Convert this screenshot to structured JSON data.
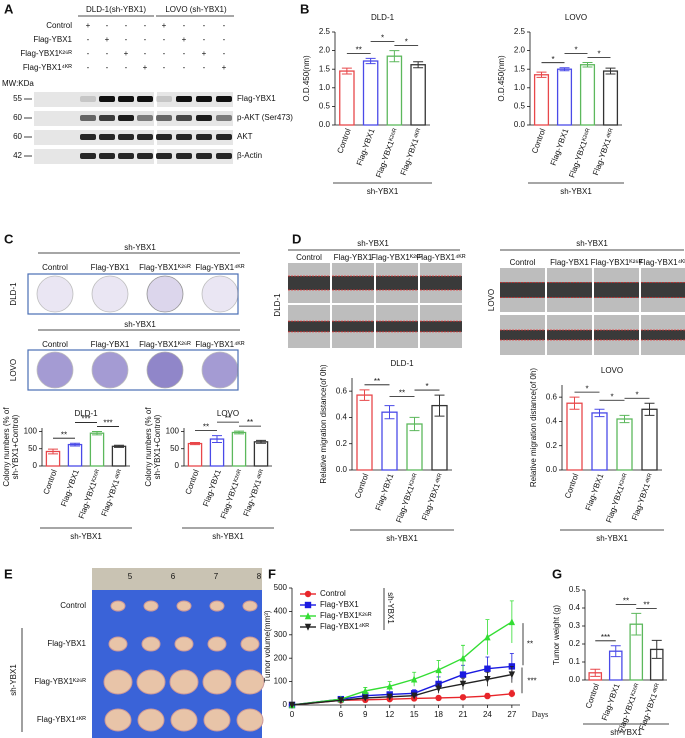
{
  "panels": {
    "labels": [
      "A",
      "B",
      "C",
      "D",
      "E",
      "F",
      "G"
    ],
    "A": {
      "headers": [
        "DLD-1(sh-YBX1)",
        "LOVO (sh-YBX1)"
      ],
      "rows": [
        "Control",
        "Flag-YBX1",
        "Flag-YBX1ᴷ²⁶ᴿ",
        "Flag-YBX1⁴ᴷᴿ"
      ],
      "matrix": [
        [
          "+",
          "-",
          "-",
          "-",
          "+",
          "-",
          "-",
          "-"
        ],
        [
          "-",
          "+",
          "-",
          "-",
          "-",
          "+",
          "-",
          "-"
        ],
        [
          "-",
          "-",
          "+",
          "-",
          "-",
          "-",
          "+",
          "-"
        ],
        [
          "-",
          "-",
          "-",
          "+",
          "-",
          "-",
          "-",
          "+"
        ]
      ],
      "mw_label": "MW:KDa",
      "markers": [
        "55",
        "60",
        "60",
        "42"
      ],
      "blots": [
        "Flag-YBX1",
        "p-AKT (Ser473)",
        "AKT",
        "β-Actin"
      ]
    },
    "C": {
      "group": [
        "sh-YBX1",
        "sh-YBX1"
      ],
      "columns": [
        "Control",
        "Flag-YBX1",
        "Flag-YBX1ᴷ²⁶ᴿ",
        "Flag-YBX1⁴ᴷᴿ"
      ],
      "rows": [
        "DLD-1",
        "LOVO"
      ]
    },
    "D": {
      "group": [
        "sh-YBX1",
        "sh-YBX1"
      ],
      "columns": [
        "Control",
        "Flag-YBX1",
        "Flag-YBX1ᴷ²⁶ᴿ",
        "Flag-YBX1⁴ᴷᴿ"
      ],
      "rows": [
        "DLD-1",
        "LOVO"
      ]
    },
    "E": {
      "ruler": [
        "5",
        "6",
        "7",
        "8"
      ],
      "rows": [
        "Control",
        "Flag-YBX1",
        "Flag-YBX1ᴷ²⁶ᴿ",
        "Flag-YBX1⁴ᴷᴿ"
      ],
      "group": "sh-YBX1"
    }
  },
  "chart_data": [
    {
      "type": "bar",
      "title": "DLD-1",
      "ylabel": [
        "O.D.450(nm)"
      ],
      "categories": [
        "Control",
        "Flag-YBX1",
        "Flag-YBX1ᴷ²⁶ᴿ",
        "Flag-YBX1⁴ᴷᴿ"
      ],
      "values": [
        1.45,
        1.72,
        1.85,
        1.62
      ],
      "errors": [
        0.08,
        0.07,
        0.15,
        0.08
      ],
      "colors": [
        "#e8474a",
        "#4a4ae8",
        "#5cb85c",
        "#333333"
      ],
      "ylim": [
        0,
        2.5
      ],
      "yticks": [
        {
          "value": 0,
          "label": "0.0"
        },
        0.5,
        {
          "value": 1,
          "label": "1.0"
        },
        1.5,
        {
          "value": 2,
          "label": "2.0"
        },
        2.5
      ],
      "annotations": [
        "**",
        "*",
        "*"
      ],
      "group_label": "sh-YBX1"
    },
    {
      "type": "bar",
      "title": "LOVO",
      "ylabel": [
        "O.D.450(nm)"
      ],
      "categories": [
        "Control",
        "Flag-YBX1",
        "Flag-YBX1ᴷ²⁶ᴿ",
        "Flag-YBX1⁴ᴷᴿ"
      ],
      "values": [
        1.35,
        1.5,
        1.62,
        1.45
      ],
      "errors": [
        0.07,
        0.04,
        0.06,
        0.08
      ],
      "colors": [
        "#e8474a",
        "#4a4ae8",
        "#5cb85c",
        "#333333"
      ],
      "ylim": [
        0,
        2.5
      ],
      "yticks": [
        {
          "value": 0,
          "label": "0.0"
        },
        0.5,
        {
          "value": 1,
          "label": "1.0"
        },
        1.5,
        {
          "value": 2,
          "label": "2.0"
        },
        2.5
      ],
      "annotations": [
        "*",
        "*",
        "*"
      ],
      "group_label": "sh-YBX1"
    },
    {
      "type": "bar",
      "title": "DLD-1",
      "ylabel": [
        "Colony numbers  (% of",
        "sh-YBX1+Control)"
      ],
      "categories": [
        "Control",
        "Flag-YBX1",
        "Flag-YBX1ᴷ²⁶ᴿ",
        "Flag-YBX1⁴ᴷᴿ"
      ],
      "values": [
        42,
        62,
        95,
        57
      ],
      "errors": [
        7,
        4,
        5,
        3
      ],
      "colors": [
        "#e8474a",
        "#4a4ae8",
        "#5cb85c",
        "#333333"
      ],
      "ylim": [
        0,
        110
      ],
      "yticks": [
        0,
        50,
        100
      ],
      "annotations": [
        "**",
        "***",
        "***"
      ],
      "group_label": "sh-YBX1"
    },
    {
      "type": "bar",
      "title": "LOVO",
      "ylabel": [
        "Colony numbers  (% of",
        "sh-YBX1+Control)"
      ],
      "categories": [
        "Control",
        "Flag-YBX1",
        "Flag-YBX1ᴷ²⁶ᴿ",
        "Flag-YBX1⁴ᴷᴿ"
      ],
      "values": [
        65,
        78,
        97,
        70
      ],
      "errors": [
        3,
        10,
        4,
        4
      ],
      "colors": [
        "#e8474a",
        "#4a4ae8",
        "#5cb85c",
        "#333333"
      ],
      "ylim": [
        0,
        110
      ],
      "yticks": [
        0,
        50,
        100
      ],
      "annotations": [
        "**",
        "**",
        "**"
      ],
      "group_label": "sh-YBX1"
    },
    {
      "type": "bar",
      "title": "DLD-1",
      "ylabel": [
        "Relative migration distance(of 0h)"
      ],
      "categories": [
        "Control",
        "Flag-YBX1",
        "Flag-YBX1ᴷ²⁶ᴿ",
        "Flag-YBX1⁴ᴷᴿ"
      ],
      "values": [
        0.57,
        0.44,
        0.35,
        0.49
      ],
      "errors": [
        0.04,
        0.05,
        0.05,
        0.08
      ],
      "colors": [
        "#e8474a",
        "#4a4ae8",
        "#5cb85c",
        "#333333"
      ],
      "ylim": [
        0,
        0.7
      ],
      "yticks": [
        {
          "value": 0,
          "label": "0.0"
        },
        0.2,
        0.4,
        0.6
      ],
      "annotations": [
        "**",
        "**",
        "*"
      ],
      "group_label": "sh-YBX1"
    },
    {
      "type": "bar",
      "title": "LOVO",
      "ylabel": [
        "Relative migration distance(of 0h)"
      ],
      "categories": [
        "Control",
        "Flag-YBX1",
        "Flag-YBX1ᴷ²⁶ᴿ",
        "Flag-YBX1⁴ᴷᴿ"
      ],
      "values": [
        0.55,
        0.47,
        0.42,
        0.5
      ],
      "errors": [
        0.05,
        0.03,
        0.03,
        0.05
      ],
      "colors": [
        "#e8474a",
        "#4a4ae8",
        "#5cb85c",
        "#333333"
      ],
      "ylim": [
        0,
        0.7
      ],
      "yticks": [
        {
          "value": 0,
          "label": "0.0"
        },
        0.2,
        0.4,
        0.6
      ],
      "annotations": [
        "*",
        "*",
        "*"
      ],
      "group_label": "sh-YBX1"
    },
    {
      "type": "line",
      "ylabel": "Tumor volume(mm³)",
      "xlabel": "Days",
      "x": [
        0,
        6,
        9,
        12,
        15,
        18,
        21,
        24,
        27
      ],
      "xlim": [
        0,
        28
      ],
      "xticks": [
        0,
        6,
        9,
        12,
        15,
        18,
        21,
        24,
        27
      ],
      "ylim": [
        0,
        500
      ],
      "yticks": [
        0,
        100,
        200,
        300,
        400,
        500
      ],
      "series": [
        {
          "name": "Control",
          "color": "#e8252a",
          "marker": "circle",
          "values": [
            0,
            20,
            22,
            25,
            28,
            30,
            33,
            38,
            48
          ],
          "errors": [
            0,
            3,
            4,
            5,
            6,
            8,
            10,
            12,
            15
          ]
        },
        {
          "name": "Flag-YBX1",
          "color": "#1a1ae0",
          "marker": "square",
          "values": [
            0,
            25,
            40,
            45,
            50,
            90,
            130,
            155,
            165
          ],
          "errors": [
            0,
            5,
            8,
            10,
            15,
            30,
            40,
            50,
            55
          ]
        },
        {
          "name": "Flag-YBX1ᴷ²⁶ᴿ",
          "color": "#33dd33",
          "marker": "triangle",
          "values": [
            0,
            25,
            60,
            80,
            110,
            150,
            200,
            290,
            355
          ],
          "errors": [
            0,
            5,
            15,
            20,
            30,
            40,
            55,
            75,
            90
          ]
        },
        {
          "name": "Flag-YBX1⁴ᴷᴿ",
          "color": "#222222",
          "marker": "triangle-down",
          "values": [
            0,
            20,
            30,
            35,
            40,
            70,
            90,
            110,
            130
          ],
          "errors": [
            0,
            4,
            6,
            8,
            10,
            20,
            25,
            30,
            35
          ]
        }
      ],
      "legend_group": "sh-YBX1",
      "annotations": [
        "**",
        "***"
      ]
    },
    {
      "type": "bar",
      "ylabel": [
        "Tumor weight (g)"
      ],
      "categories": [
        "Control",
        "Flag-YBX1",
        "Flag-YBX1ᴷ²⁶ᴿ",
        "Flag-YBX1⁴ᴷᴿ"
      ],
      "values": [
        0.04,
        0.16,
        0.31,
        0.17
      ],
      "errors": [
        0.02,
        0.03,
        0.06,
        0.05
      ],
      "colors": [
        "#e8474a",
        "#4a4ae8",
        "#5cb85c",
        "#333333"
      ],
      "ylim": [
        0,
        0.5
      ],
      "yticks": [
        {
          "value": 0,
          "label": "0.0"
        },
        0.1,
        0.2,
        0.3,
        0.4,
        0.5
      ],
      "annotations": [
        "***",
        "**",
        "**"
      ],
      "group_label": "sh-YBX1"
    }
  ]
}
